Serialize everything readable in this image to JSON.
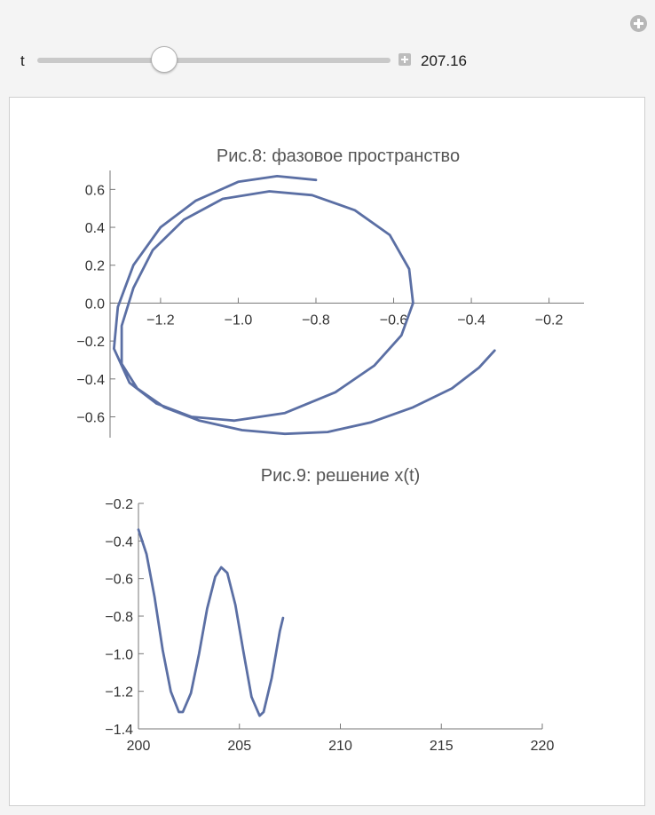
{
  "controls": {
    "param_label": "t",
    "param_value": "207.16",
    "slider_fraction": 0.36
  },
  "colors": {
    "curve": "#5b6fa4",
    "axis": "#777777",
    "title": "#555555"
  },
  "chart_data": [
    {
      "type": "line",
      "title": "Рис.8: фазовое пространство",
      "xlabel": "",
      "ylabel": "",
      "xlim": [
        -1.33,
        -0.11
      ],
      "ylim": [
        -0.71,
        0.7
      ],
      "xticks": [
        -1.2,
        -1.0,
        -0.8,
        -0.6,
        -0.4,
        -0.2
      ],
      "xtick_labels": [
        "−1.2",
        "−1.0",
        "−0.8",
        "−0.6",
        "−0.4",
        "−0.2"
      ],
      "yticks": [
        0.6,
        0.4,
        0.2,
        0.0,
        -0.2,
        -0.4,
        -0.6
      ],
      "ytick_labels": [
        "0.6",
        "0.4",
        "0.2",
        "0.0",
        "−0.2",
        "−0.4",
        "−0.6"
      ],
      "series": [
        {
          "x": [
            -0.34,
            -0.38,
            -0.45,
            -0.55,
            -0.66,
            -0.77,
            -0.88,
            -0.99,
            -1.1,
            -1.19,
            -1.26,
            -1.3,
            -1.3,
            -1.27,
            -1.22,
            -1.14,
            -1.04,
            -0.92,
            -0.81,
            -0.7,
            -0.61,
            -0.56,
            -0.55,
            -0.58,
            -0.65,
            -0.75,
            -0.88,
            -1.01,
            -1.12,
            -1.21,
            -1.28,
            -1.32,
            -1.31,
            -1.27,
            -1.2,
            -1.11,
            -1.0,
            -0.9,
            -0.8
          ],
          "y": [
            -0.25,
            -0.34,
            -0.45,
            -0.55,
            -0.63,
            -0.68,
            -0.69,
            -0.67,
            -0.62,
            -0.55,
            -0.45,
            -0.32,
            -0.12,
            0.08,
            0.28,
            0.44,
            0.55,
            0.59,
            0.57,
            0.49,
            0.36,
            0.18,
            0.0,
            -0.17,
            -0.33,
            -0.47,
            -0.58,
            -0.62,
            -0.6,
            -0.53,
            -0.42,
            -0.24,
            -0.02,
            0.2,
            0.4,
            0.54,
            0.64,
            0.67,
            0.65
          ]
        }
      ]
    },
    {
      "type": "line",
      "title": "Рис.9: решение x(t)",
      "xlabel": "",
      "ylabel": "",
      "xlim": [
        200,
        220
      ],
      "ylim": [
        -1.4,
        -0.2
      ],
      "xticks": [
        200,
        205,
        210,
        215,
        220
      ],
      "xtick_labels": [
        "200",
        "205",
        "210",
        "215",
        "220"
      ],
      "yticks": [
        -0.2,
        -0.4,
        -0.6,
        -0.8,
        -1.0,
        -1.2,
        -1.4
      ],
      "ytick_labels": [
        "−0.2",
        "−0.4",
        "−0.6",
        "−0.8",
        "−1.0",
        "−1.2",
        "−1.4"
      ],
      "series": [
        {
          "x": [
            200.0,
            200.4,
            200.8,
            201.2,
            201.6,
            202.0,
            202.2,
            202.6,
            203.0,
            203.4,
            203.8,
            204.1,
            204.4,
            204.8,
            205.2,
            205.6,
            206.0,
            206.2,
            206.6,
            207.0,
            207.16
          ],
          "y": [
            -0.34,
            -0.47,
            -0.7,
            -0.98,
            -1.2,
            -1.31,
            -1.31,
            -1.21,
            -1.0,
            -0.76,
            -0.59,
            -0.54,
            -0.57,
            -0.74,
            -0.99,
            -1.23,
            -1.33,
            -1.31,
            -1.13,
            -0.88,
            -0.81
          ]
        }
      ]
    }
  ]
}
